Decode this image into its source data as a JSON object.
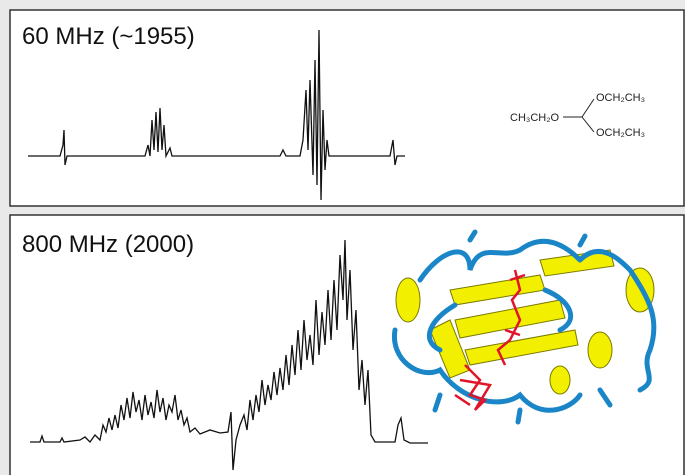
{
  "panels": [
    {
      "label": "60 MHz (~1955)",
      "formula": {
        "left": "CH₃CH₂O",
        "top": "OCH₂CH₃",
        "bottom": "OCH₂CH₃"
      }
    },
    {
      "label": "800 MHz (2000)"
    }
  ]
}
